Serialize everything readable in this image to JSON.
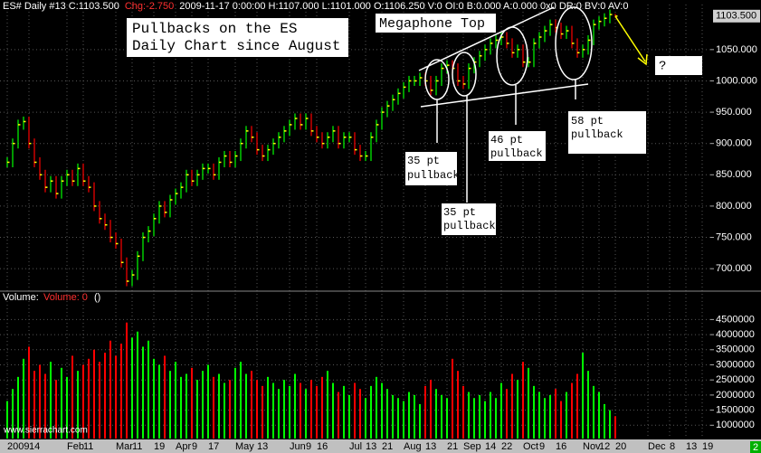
{
  "chart_data": {
    "type": "ohlc",
    "header": [
      {
        "text": "ES#  Daily  #13  C:1103.500",
        "color": "#ffffff"
      },
      {
        "text": "Chg:-2.750",
        "color": "#ff3030"
      },
      {
        "text": "2009-11-17  0:00:00  H:1107.000  L:1101.000  O:1106.250  V:0  OI:0  B:0.000  A:0.000  0x0  DR:0  BV:0  AV:0",
        "color": "#ffffff"
      }
    ],
    "title": [
      "Pullbacks on the ES",
      "Daily Chart since August"
    ],
    "annotations": {
      "megaphone": "Megaphone Top",
      "pullbacks": [
        [
          "35 pt",
          "pullback"
        ],
        [
          "35 pt",
          "pullback"
        ],
        [
          "46 pt",
          "pullback"
        ],
        [
          "58 pt",
          "pullback"
        ]
      ],
      "question": "?"
    },
    "watermark": "www.sierrachart.com",
    "corner_label": "2",
    "up_color": "#00ff00",
    "down_color": "#ff0000",
    "close_color": "#ffff00",
    "grid": true,
    "categories": [
      "2009",
      null,
      null,
      null,
      "14",
      null,
      null,
      null,
      null,
      null,
      null,
      "Feb",
      null,
      null,
      "11",
      null,
      null,
      null,
      null,
      null,
      "Mar",
      null,
      null,
      "11",
      null,
      null,
      null,
      "19",
      null,
      null,
      null,
      "Apr",
      null,
      null,
      "9",
      null,
      null,
      "17",
      null,
      null,
      null,
      null,
      "May",
      null,
      null,
      null,
      "13",
      null,
      null,
      null,
      null,
      null,
      "Jun",
      null,
      null,
      "9",
      null,
      "16",
      null,
      null,
      null,
      null,
      null,
      "Jul",
      null,
      null,
      "13",
      null,
      null,
      "21",
      null,
      null,
      null,
      "Aug",
      null,
      null,
      null,
      "13",
      null,
      null,
      null,
      "21",
      null,
      null,
      "Sep",
      null,
      null,
      null,
      "14",
      null,
      null,
      "22",
      null,
      null,
      null,
      "Oct",
      null,
      null,
      "9",
      null,
      null,
      "16",
      null,
      null,
      null,
      null,
      "Nov",
      null,
      null,
      "12",
      null,
      null,
      "20",
      null,
      null,
      null,
      null,
      null,
      "Dec",
      null,
      null,
      null,
      "8",
      null,
      null,
      "13",
      null,
      null,
      "19"
    ],
    "high": [
      878,
      908,
      938,
      943,
      943,
      908,
      878,
      858,
      848,
      848,
      848,
      858,
      858,
      868,
      868,
      848,
      838,
      808,
      788,
      778,
      758,
      748,
      718,
      698,
      728,
      758,
      768,
      788,
      808,
      808,
      818,
      828,
      838,
      858,
      858,
      858,
      868,
      868,
      868,
      878,
      888,
      888,
      888,
      908,
      928,
      928,
      918,
      898,
      898,
      908,
      918,
      928,
      938,
      948,
      948,
      948,
      948,
      928,
      918,
      918,
      928,
      928,
      918,
      918,
      918,
      898,
      888,
      918,
      938,
      958,
      968,
      978,
      988,
      998,
      1008,
      1008,
      1013,
      1013,
      1008,
      1008,
      1028,
      1033,
      1033,
      1028,
      1008,
      1028,
      1038,
      1048,
      1058,
      1068,
      1073,
      1078,
      1078,
      1068,
      1058,
      1058,
      1038,
      1068,
      1078,
      1088,
      1098,
      1098,
      1093,
      1088,
      1088,
      1068,
      1058,
      1073,
      1098,
      1103,
      1108,
      1114,
      1107,
      null,
      null,
      null,
      null,
      null,
      null,
      null,
      null,
      null,
      null,
      null,
      null,
      null,
      null,
      null,
      null
    ],
    "low": [
      862,
      862,
      892,
      922,
      892,
      862,
      842,
      822,
      822,
      812,
      812,
      832,
      832,
      832,
      832,
      822,
      792,
      772,
      762,
      742,
      732,
      702,
      672,
      672,
      682,
      712,
      742,
      752,
      772,
      782,
      782,
      802,
      812,
      822,
      832,
      832,
      842,
      852,
      842,
      842,
      862,
      862,
      862,
      872,
      892,
      902,
      882,
      872,
      872,
      882,
      892,
      902,
      912,
      922,
      922,
      922,
      912,
      902,
      892,
      892,
      902,
      892,
      892,
      902,
      882,
      872,
      872,
      872,
      902,
      922,
      942,
      952,
      962,
      972,
      982,
      992,
      992,
      992,
      977,
      977,
      992,
      1012,
      1012,
      992,
      987,
      987,
      1012,
      1022,
      1032,
      1042,
      1052,
      1057,
      1052,
      1037,
      1037,
      1022,
      1022,
      1022,
      1052,
      1062,
      1072,
      1077,
      1067,
      1067,
      1052,
      1037,
      1037,
      1042,
      1057,
      1082,
      1087,
      1092,
      1101,
      null,
      null,
      null,
      null,
      null,
      null,
      null,
      null,
      null,
      null,
      null,
      null,
      null,
      null,
      null,
      null
    ],
    "close": [
      870,
      900,
      930,
      935,
      900,
      870,
      850,
      830,
      840,
      820,
      840,
      850,
      840,
      860,
      840,
      830,
      800,
      780,
      770,
      750,
      740,
      710,
      680,
      690,
      720,
      750,
      760,
      780,
      800,
      790,
      810,
      820,
      830,
      850,
      840,
      850,
      860,
      860,
      850,
      870,
      880,
      870,
      880,
      900,
      920,
      910,
      890,
      880,
      890,
      900,
      910,
      920,
      930,
      940,
      930,
      940,
      920,
      910,
      900,
      910,
      920,
      900,
      910,
      910,
      890,
      880,
      880,
      910,
      930,
      950,
      960,
      970,
      980,
      990,
      1000,
      1000,
      1005,
      1000,
      985,
      1000,
      1020,
      1025,
      1020,
      1000,
      995,
      1020,
      1030,
      1040,
      1050,
      1060,
      1065,
      1070,
      1060,
      1045,
      1050,
      1030,
      1030,
      1060,
      1070,
      1080,
      1090,
      1085,
      1075,
      1080,
      1060,
      1045,
      1050,
      1065,
      1090,
      1095,
      1100,
      1106,
      1103.5,
      null,
      null,
      null,
      null,
      null,
      null,
      null,
      null,
      null,
      null,
      null,
      null,
      null,
      null,
      null,
      null
    ],
    "ylim": [
      667,
      1122
    ],
    "yticks": [
      {
        "value": 700,
        "label": "700.000"
      },
      {
        "value": 750,
        "label": "750.000"
      },
      {
        "value": 800,
        "label": "800.000"
      },
      {
        "value": 850,
        "label": "850.000"
      },
      {
        "value": 900,
        "label": "900.000"
      },
      {
        "value": 950,
        "label": "950.000"
      },
      {
        "value": 1000,
        "label": "1000.000"
      },
      {
        "value": 1050,
        "label": "1050.000"
      }
    ],
    "last_price": {
      "value": 1103.5,
      "label": "1103.500"
    },
    "volume": {
      "title": "Volume:",
      "value_text": "Volume: 0",
      "extra": "()",
      "ylim": [
        560000,
        5200000
      ],
      "yticks": [
        1000000,
        1500000,
        2000000,
        2500000,
        3000000,
        3500000,
        4000000,
        4500000
      ],
      "values": [
        1800000,
        2200000,
        2600000,
        3200000,
        3600000,
        2800000,
        3000000,
        2700000,
        3100000,
        2500000,
        2900000,
        2600000,
        3300000,
        2800000,
        3000000,
        3200000,
        3500000,
        3100000,
        3400000,
        3800000,
        3300000,
        3700000,
        4400000,
        3900000,
        4100000,
        3600000,
        3800000,
        3200000,
        3000000,
        3300000,
        2800000,
        3100000,
        2600000,
        2700000,
        2900000,
        2500000,
        2800000,
        3000000,
        2600000,
        2700000,
        2400000,
        2500000,
        2900000,
        3100000,
        2700000,
        2800000,
        2500000,
        2300000,
        2600000,
        2400000,
        2200000,
        2500000,
        2300000,
        2700000,
        2400000,
        2200000,
        2500000,
        2300000,
        2600000,
        2800000,
        2400000,
        2100000,
        2300000,
        2000000,
        2400000,
        2200000,
        1900000,
        2300000,
        2600000,
        2400000,
        2200000,
        2000000,
        1900000,
        1800000,
        2100000,
        2000000,
        1700000,
        2300000,
        2500000,
        2200000,
        2000000,
        1900000,
        3200000,
        2800000,
        2300000,
        2100000,
        1900000,
        2000000,
        1800000,
        2100000,
        1900000,
        2400000,
        2200000,
        2700000,
        2500000,
        3100000,
        2900000,
        2300000,
        2100000,
        1900000,
        2000000,
        2200000,
        1800000,
        2100000,
        2400000,
        2700000,
        3400000,
        2800000,
        2300000,
        2100000,
        1700000,
        1500000,
        1300000,
        null,
        null,
        null,
        null,
        null,
        null,
        null,
        null,
        null,
        null,
        null,
        null,
        null,
        null,
        null,
        null
      ]
    }
  }
}
